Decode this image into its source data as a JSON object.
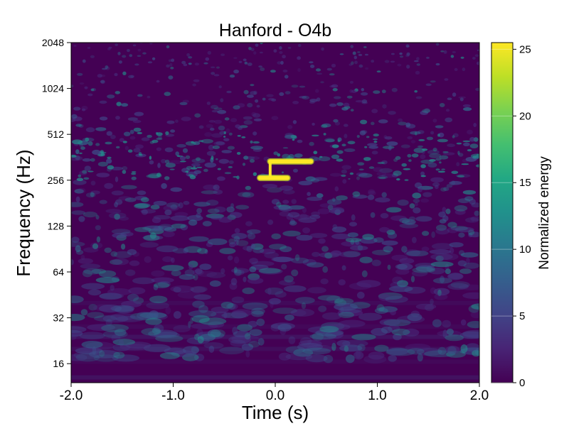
{
  "chart_data": {
    "type": "heatmap",
    "title": "Hanford - O4b",
    "xlabel": "Time (s)",
    "ylabel": "Frequency (Hz)",
    "xlim": [
      -2.0,
      2.0
    ],
    "ylim": [
      12,
      2048
    ],
    "yscale": "log2",
    "x_ticks": [
      -2.0,
      -1.0,
      0.0,
      1.0,
      2.0
    ],
    "x_tick_labels": [
      "-2.0",
      "-1.0",
      "0.0",
      "1.0",
      "2.0"
    ],
    "y_ticks": [
      16,
      32,
      64,
      128,
      256,
      512,
      1024,
      2048
    ],
    "y_tick_labels": [
      "16",
      "32",
      "64",
      "128",
      "256",
      "512",
      "1024",
      "2048"
    ],
    "colormap": "viridis",
    "colorbar": {
      "label": "Normalized energy",
      "range": [
        0,
        25.5
      ],
      "ticks": [
        0,
        5,
        10,
        15,
        20,
        25
      ],
      "tick_labels": [
        "0",
        "5",
        "10",
        "15",
        "20",
        "25"
      ]
    },
    "signal_features": [
      {
        "t_start": -0.05,
        "t_end": 0.35,
        "freq": 340,
        "energy": 25.5
      },
      {
        "t_start": -0.15,
        "t_end": 0.12,
        "freq": 265,
        "energy": 25.5
      },
      {
        "t_start": -0.05,
        "t_end": -0.04,
        "freq_range": [
          265,
          340
        ],
        "energy": 25.5
      }
    ],
    "grid": false
  }
}
